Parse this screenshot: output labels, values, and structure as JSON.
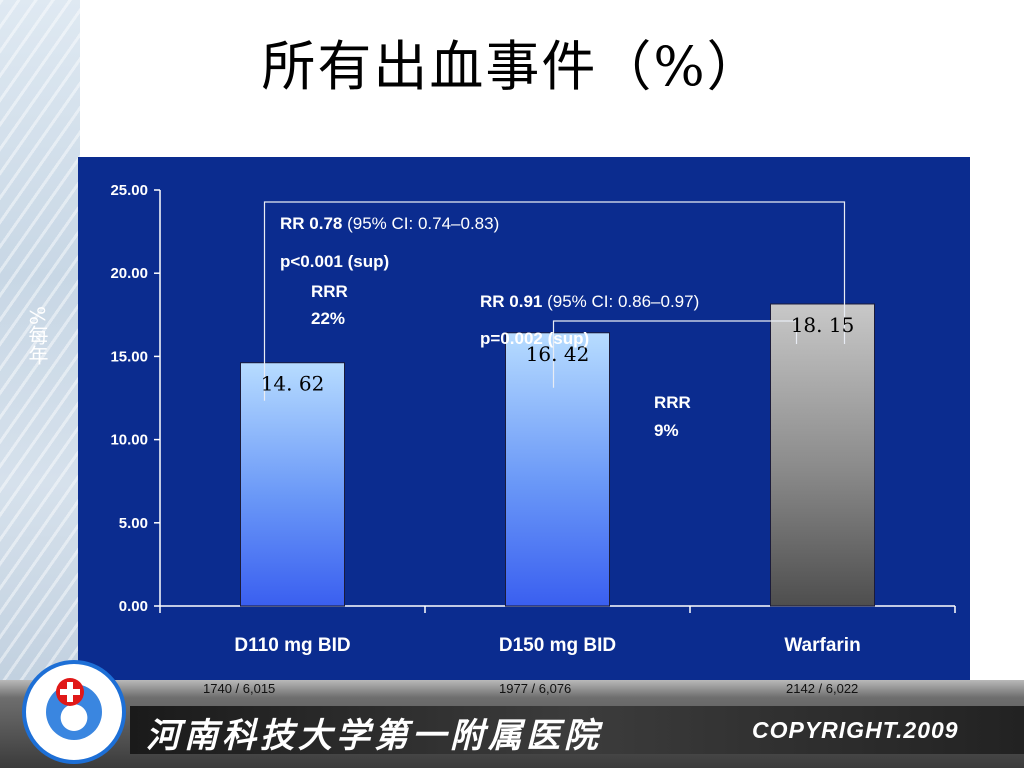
{
  "title": "所有出血事件（%）",
  "y_axis_label": "%每年",
  "chart_data": {
    "type": "bar",
    "categories": [
      "D110 mg BID",
      "D150 mg BID",
      "Warfarin"
    ],
    "values": [
      14.62,
      16.42,
      18.15
    ],
    "value_labels": [
      "14. 62",
      "16. 42",
      "18. 15"
    ],
    "ylim": [
      0,
      25
    ],
    "yticks": [
      "0.00",
      "5.00",
      "10.00",
      "15.00",
      "20.00",
      "25.00"
    ],
    "grid": false,
    "bar_colors": [
      "#4a77f0",
      "#4a77f0",
      "#777777"
    ],
    "annotations": {
      "cmp1": {
        "rr_bold": "RR 0.78",
        "rr_ci": " (95% CI: 0.74–0.83)",
        "p": "p<0.001 (sup)",
        "rrr1": "RRR",
        "rrr2": "22%"
      },
      "cmp2": {
        "rr_bold": "RR 0.91",
        "rr_ci": " (95% CI: 0.86–0.97)",
        "p": "p=0.002 (sup)",
        "rrr1": "RRR",
        "rrr2": "9%"
      }
    }
  },
  "counts": [
    "1740 / 6,015",
    "1977 / 6,076",
    "2142 / 6,022"
  ],
  "footer": {
    "hospital": "河南科技大学第一附属医院",
    "copyright": "COPYRIGHT.2009"
  },
  "colors": {
    "panel": "#0b2c8f",
    "dabig_bar": "#4a77f0",
    "warfarin_bar": "#777777"
  }
}
